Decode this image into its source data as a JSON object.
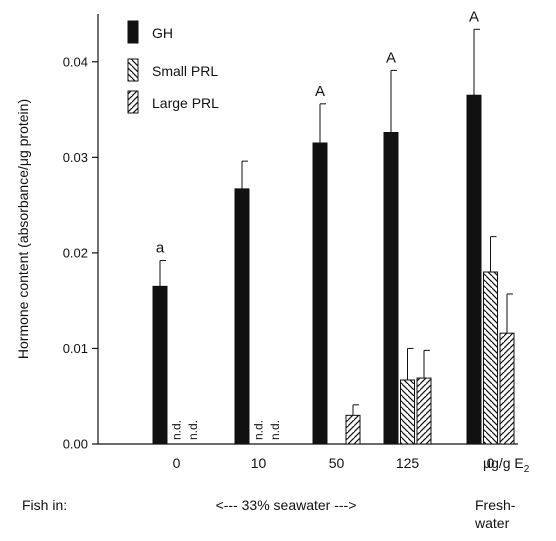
{
  "chart_data": {
    "type": "bar",
    "ylabel": "Hormone content (absorbance/μg protein)",
    "ylim": [
      0,
      0.045
    ],
    "yticks": [
      0.0,
      0.01,
      0.02,
      0.03,
      0.04
    ],
    "ytick_labels": [
      "0.00",
      "0.01",
      "0.02",
      "0.03",
      "0.04"
    ],
    "grid": false,
    "legend_position": "top-left",
    "x_unit_label": "μg/g E",
    "x_unit_subscript": "2",
    "categories": [
      "0",
      "10",
      "50",
      "125",
      "0"
    ],
    "series": [
      {
        "name": "GH",
        "fill": "solid",
        "values": [
          0.0165,
          0.0267,
          0.0315,
          0.0326,
          0.0365
        ],
        "errors": [
          0.0027,
          0.0029,
          0.0041,
          0.0065,
          0.0069
        ],
        "labels": [
          "a",
          "",
          "A",
          "A",
          "A"
        ]
      },
      {
        "name": "Small PRL",
        "fill": "hatch-backslash",
        "values": [
          null,
          null,
          null,
          0.0067,
          0.018
        ],
        "errors": [
          null,
          null,
          null,
          0.0033,
          0.0037
        ],
        "labels": [
          "n.d.",
          "n.d.",
          "",
          "",
          ""
        ]
      },
      {
        "name": "Large PRL",
        "fill": "hatch-slash",
        "values": [
          null,
          null,
          0.003,
          0.0069,
          0.0116
        ],
        "errors": [
          null,
          null,
          0.0011,
          0.0029,
          0.0041
        ],
        "labels": [
          "n.d.",
          "n.d.",
          "",
          "",
          ""
        ]
      }
    ],
    "footer": {
      "fish_in_label": "Fish in:",
      "seawater_label": "<--- 33% seawater --->",
      "freshwater_line1": "Fresh-",
      "freshwater_line2": "water"
    }
  }
}
